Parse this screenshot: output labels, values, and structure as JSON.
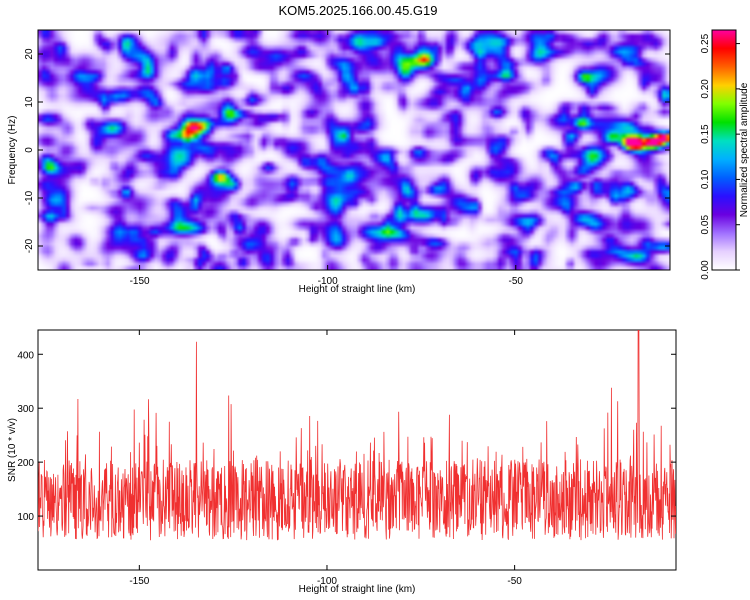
{
  "title": "KOM5.2025.166.00.45.G19",
  "chart_data": [
    {
      "type": "heatmap",
      "title": "KOM5.2025.166.00.45.G19",
      "xlabel": "Height of straight line (km)",
      "ylabel": "Frequency (Hz)",
      "xlim": [
        -177,
        -9
      ],
      "ylim": [
        -25,
        25
      ],
      "xticks": [
        -150,
        -100,
        -50
      ],
      "yticks": [
        -20,
        -10,
        0,
        10,
        20
      ],
      "grid": false,
      "colorbar": {
        "label": "Normalized spectral amplitude",
        "range": [
          0,
          0.265
        ],
        "ticks": [
          0.0,
          0.05,
          0.1,
          0.15,
          0.2,
          0.25
        ],
        "tick_labels": [
          "0.00",
          "0.05",
          "0.10",
          "0.15",
          "0.20",
          "0.25"
        ],
        "colormap": [
          "#ffffff",
          "#e6d0ff",
          "#a070ff",
          "#6a00e0",
          "#2a10ff",
          "#0060ff",
          "#00b0ff",
          "#00e0c0",
          "#00e000",
          "#80ff00",
          "#ffd000",
          "#ff6000",
          "#ff0000",
          "#ff00a0"
        ]
      },
      "peaks": [
        {
          "x": -20,
          "y": 2,
          "value": 0.26
        },
        {
          "x": -14,
          "y": 2,
          "value": 0.26
        },
        {
          "x": -11,
          "y": 3,
          "value": 0.24
        },
        {
          "x": -33,
          "y": 6,
          "value": 0.16
        },
        {
          "x": -129,
          "y": -5,
          "value": 0.15
        },
        {
          "x": -25,
          "y": 3,
          "value": 0.11
        }
      ],
      "background_level": [
        0.01,
        0.06
      ]
    },
    {
      "type": "line",
      "xlabel": "Height of straight line (km)",
      "ylabel": "SNR (10 * v/v)",
      "xlim": [
        -177,
        -7
      ],
      "ylim": [
        0,
        445
      ],
      "xticks": [
        -150,
        -100,
        -50
      ],
      "yticks": [
        100,
        200,
        300,
        400
      ],
      "grid": false,
      "series": [
        {
          "color": "#f03030",
          "typical_range": [
            20,
            300
          ],
          "mean": 130,
          "max": 445,
          "max_x": -17
        }
      ]
    }
  ],
  "axes_ticks": {
    "top_x": [
      "-150",
      "-100",
      "-50"
    ],
    "top_y": [
      "-20",
      "-10",
      "0",
      "10",
      "20"
    ],
    "bottom_x": [
      "-150",
      "-100",
      "-50"
    ],
    "bottom_y": [
      "100",
      "200",
      "300",
      "400"
    ]
  }
}
